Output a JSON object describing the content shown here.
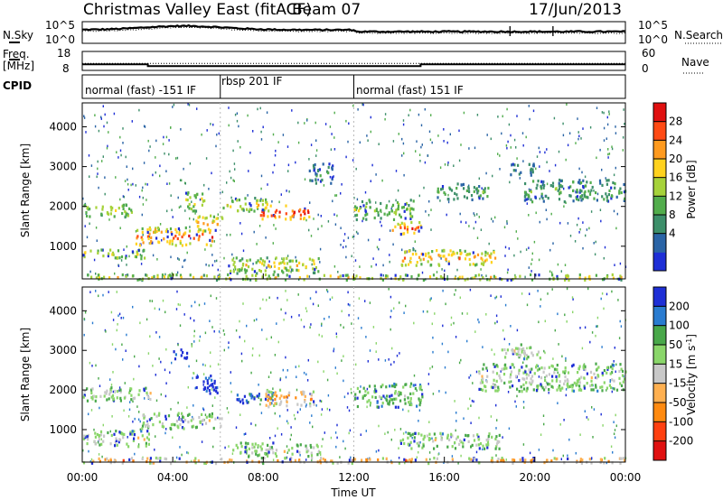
{
  "header": {
    "title": "Christmas Valley East (fitACF)",
    "beam": "Beam 07",
    "date": "17/Jun/2013"
  },
  "nsky_panel": {
    "left_label": "N.Sky",
    "left_ticks": [
      "10^5",
      "10^0"
    ],
    "right_label": "N.Search",
    "right_ticks": [
      "10^5",
      "10^0"
    ]
  },
  "freq_panel": {
    "left_label_1": "Freq.",
    "left_label_2": "[MHz]",
    "left_ticks": [
      "18",
      "8"
    ],
    "right_label": "Nave",
    "right_ticks": [
      "60",
      "0"
    ]
  },
  "cpid_panel": {
    "label": "CPID",
    "segments": [
      "normal (fast) -151 IF",
      "rbsp 201 IF",
      "normal (fast) 151 IF"
    ]
  },
  "power_panel": {
    "ylabel": "Slant Range [km]",
    "colorbar_label": "Power [dB]",
    "colorbar_ticks": [
      "28",
      "24",
      "20",
      "16",
      "12",
      "8",
      "4"
    ]
  },
  "velocity_panel": {
    "ylabel": "Slant Range [km]",
    "colorbar_label": "Velocity [m s",
    "colorbar_label_exp": "-1",
    "colorbar_label_end": "]",
    "colorbar_ticks": [
      "200",
      "100",
      "50",
      "15",
      "-15",
      "-50",
      "-100",
      "-200"
    ]
  },
  "xaxis": {
    "label": "Time UT",
    "ticks": [
      "00:00",
      "04:00",
      "08:00",
      "12:00",
      "16:00",
      "20:00",
      "00:00"
    ]
  },
  "chart_data": {
    "type": "heatmap",
    "x_range_hours": [
      0,
      24
    ],
    "y_range_km": [
      180,
      4600
    ],
    "y_ticks": [
      1000,
      2000,
      3000,
      4000
    ],
    "x_tick_hours": [
      0,
      4,
      8,
      12,
      16,
      20,
      24
    ],
    "power_colormap": [
      "#1e2fd6",
      "#2a64a6",
      "#3d8f6a",
      "#52ad4c",
      "#a6d23a",
      "#ffd21e",
      "#ff9a1e",
      "#ff4a14",
      "#e01010"
    ],
    "velocity_colormap": [
      "#1e2fd6",
      "#2a7cd0",
      "#49a84a",
      "#8ad66a",
      "#c8c8c8",
      "#ffb050",
      "#ff8a10",
      "#ff4010",
      "#e01010"
    ],
    "cpid_change_hours": [
      6.1,
      12.0
    ],
    "frequency_mhz": [
      {
        "from_h": 0,
        "to_h": 2.9,
        "value": 11.2
      },
      {
        "from_h": 2.9,
        "to_h": 14.95,
        "value": 10.3
      },
      {
        "from_h": 14.95,
        "to_h": 24,
        "value": 11.2
      }
    ],
    "nave_level": 22,
    "power_structures": [
      {
        "t0": 0.0,
        "t1": 2.2,
        "r0": 1750,
        "r1": 2100,
        "level": 4
      },
      {
        "t0": 0.0,
        "t1": 2.8,
        "r0": 700,
        "r1": 950,
        "level": 5
      },
      {
        "t0": 2.3,
        "t1": 5.8,
        "r0": 1050,
        "r1": 1500,
        "level": 7
      },
      {
        "t0": 4.5,
        "t1": 5.4,
        "r0": 1900,
        "r1": 2400,
        "level": 5
      },
      {
        "t0": 5.0,
        "t1": 6.2,
        "r0": 1400,
        "r1": 1800,
        "level": 6
      },
      {
        "t0": 6.2,
        "t1": 8.2,
        "r0": 1900,
        "r1": 2250,
        "level": 5
      },
      {
        "t0": 7.8,
        "t1": 10.0,
        "r0": 1700,
        "r1": 2050,
        "level": 8
      },
      {
        "t0": 6.4,
        "t1": 10.5,
        "r0": 350,
        "r1": 750,
        "level": 5
      },
      {
        "t0": 10.0,
        "t1": 11.2,
        "r0": 2600,
        "r1": 3100,
        "level": 2
      },
      {
        "t0": 12.0,
        "t1": 14.6,
        "r0": 1700,
        "r1": 2200,
        "level": 4
      },
      {
        "t0": 13.6,
        "t1": 15.0,
        "r0": 1300,
        "r1": 1650,
        "level": 7
      },
      {
        "t0": 14.0,
        "t1": 18.3,
        "r0": 550,
        "r1": 950,
        "level": 6
      },
      {
        "t0": 15.6,
        "t1": 18.0,
        "r0": 2200,
        "r1": 2600,
        "level": 3
      },
      {
        "t0": 19.5,
        "t1": 24.0,
        "r0": 2150,
        "r1": 2700,
        "level": 3
      },
      {
        "t0": 18.8,
        "t1": 20.0,
        "r0": 2800,
        "r1": 3100,
        "level": 2
      },
      {
        "t0": 0.0,
        "t1": 24.0,
        "r0": 180,
        "r1": 320,
        "level": 5
      }
    ],
    "velocity_structures": [
      {
        "t0": 0.0,
        "t1": 3.0,
        "r0": 1750,
        "r1": 2100,
        "level": 4
      },
      {
        "t0": 0.0,
        "t1": 3.0,
        "r0": 600,
        "r1": 1000,
        "level": 4
      },
      {
        "t0": 2.6,
        "t1": 6.2,
        "r0": 1050,
        "r1": 1450,
        "level": 4
      },
      {
        "t0": 5.0,
        "t1": 6.0,
        "r0": 1900,
        "r1": 2400,
        "level": 0
      },
      {
        "t0": 4.0,
        "t1": 4.6,
        "r0": 2800,
        "r1": 3100,
        "level": 0
      },
      {
        "t0": 6.5,
        "t1": 8.4,
        "r0": 1700,
        "r1": 2000,
        "level": 1
      },
      {
        "t0": 8.0,
        "t1": 10.2,
        "r0": 1600,
        "r1": 2050,
        "level": 6
      },
      {
        "t0": 6.6,
        "t1": 10.5,
        "r0": 350,
        "r1": 700,
        "level": 4
      },
      {
        "t0": 12.0,
        "t1": 15.0,
        "r0": 1600,
        "r1": 2200,
        "level": 3
      },
      {
        "t0": 14.0,
        "t1": 18.5,
        "r0": 550,
        "r1": 950,
        "level": 4
      },
      {
        "t0": 17.5,
        "t1": 24.0,
        "r0": 2000,
        "r1": 2700,
        "level": 4
      },
      {
        "t0": 18.5,
        "t1": 20.2,
        "r0": 2800,
        "r1": 3200,
        "level": 4
      },
      {
        "t0": 0.0,
        "t1": 24.0,
        "r0": 180,
        "r1": 320,
        "level": 6
      }
    ]
  }
}
